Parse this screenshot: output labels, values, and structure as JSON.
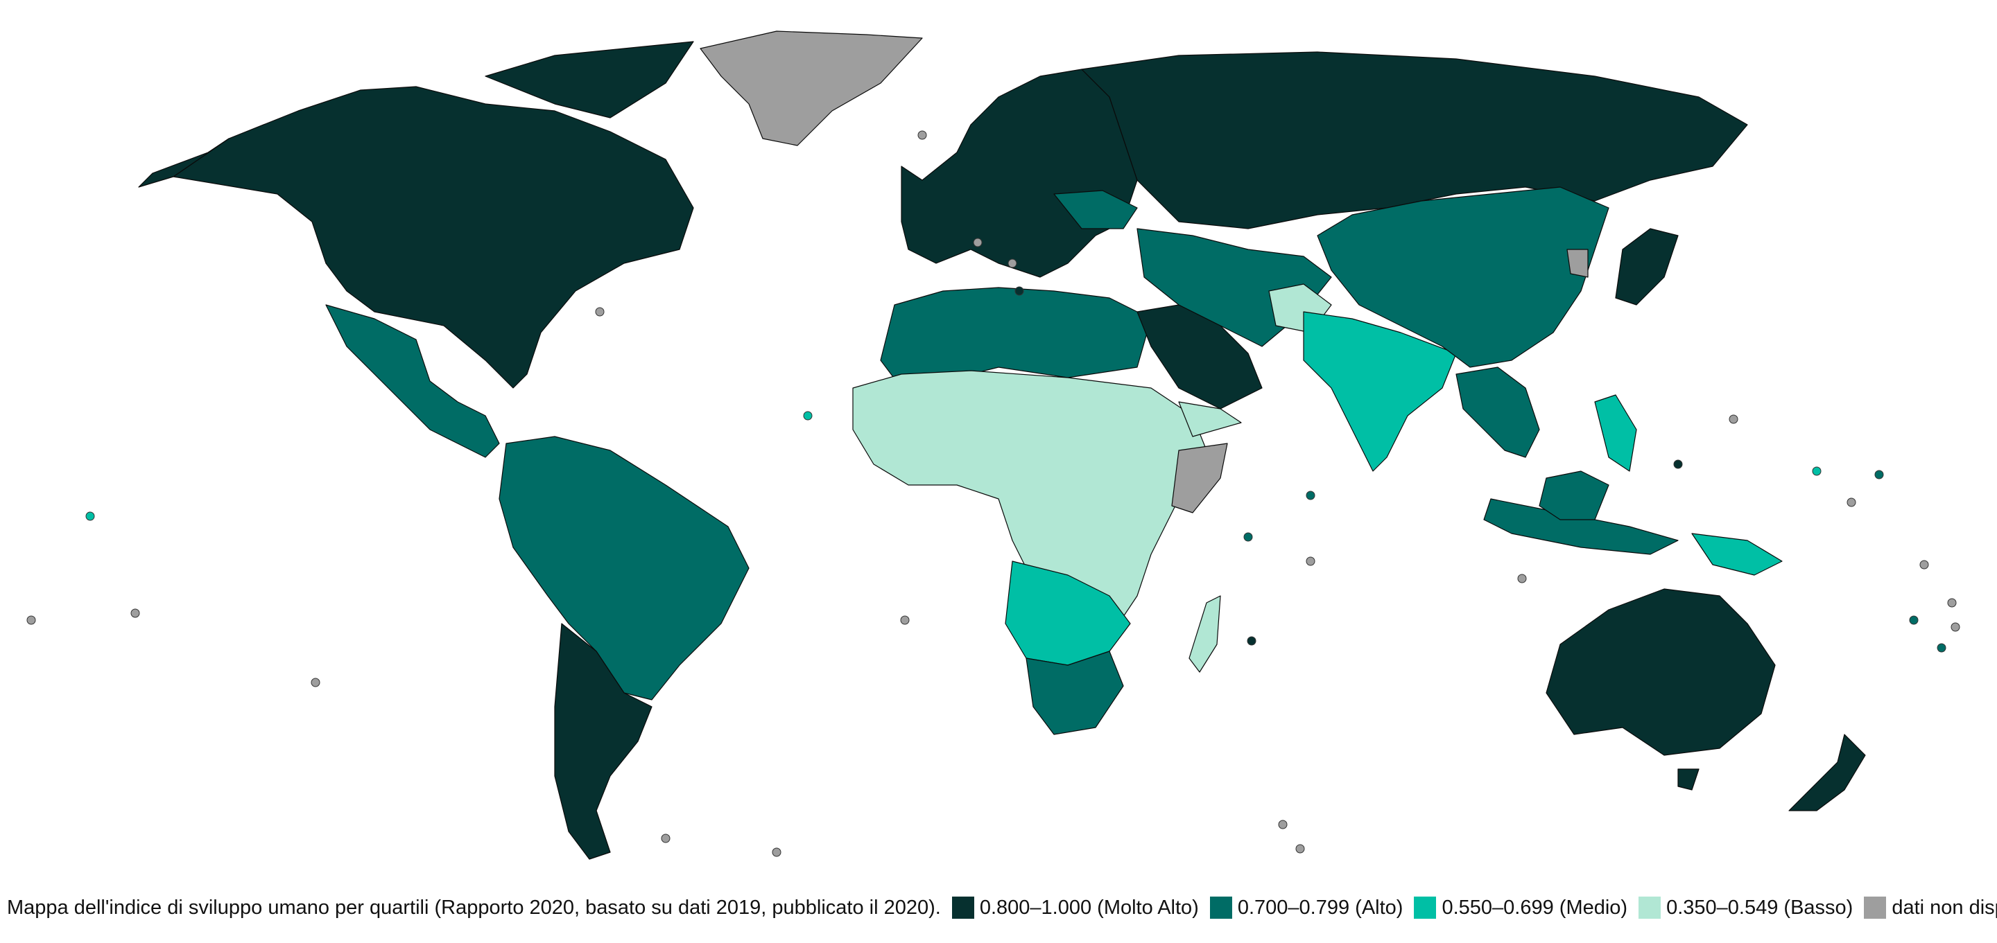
{
  "map": {
    "caption": "Mappa dell'indice di sviluppo umano per quartili (Rapporto 2020, basato su dati 2019, pubblicato il 2020).",
    "legend": [
      {
        "id": "very-high",
        "label": "0.800–1.000 (Molto Alto)",
        "color": "#06302f"
      },
      {
        "id": "high",
        "label": "0.700–0.799 (Alto)",
        "color": "#006c65"
      },
      {
        "id": "medium",
        "label": "0.550–0.699 (Medio)",
        "color": "#00bfa5"
      },
      {
        "id": "low",
        "label": "0.350–0.549 (Basso)",
        "color": "#b1e7d4"
      },
      {
        "id": "na",
        "label": "dati non disponibili",
        "color": "#9e9e9e"
      }
    ],
    "regions": [
      {
        "name": "north-america",
        "category": "very-high"
      },
      {
        "name": "greenland",
        "category": "na"
      },
      {
        "name": "mexico-central-america",
        "category": "high"
      },
      {
        "name": "south-america-north",
        "category": "high"
      },
      {
        "name": "south-america-south",
        "category": "very-high"
      },
      {
        "name": "europe",
        "category": "very-high"
      },
      {
        "name": "russia",
        "category": "very-high"
      },
      {
        "name": "north-africa",
        "category": "high"
      },
      {
        "name": "sub-saharan-africa",
        "category": "low"
      },
      {
        "name": "southern-africa",
        "category": "medium"
      },
      {
        "name": "south-africa",
        "category": "high"
      },
      {
        "name": "arabia",
        "category": "very-high"
      },
      {
        "name": "middle-east",
        "category": "high"
      },
      {
        "name": "india-south-asia",
        "category": "medium"
      },
      {
        "name": "china-mongolia",
        "category": "high"
      },
      {
        "name": "japan",
        "category": "very-high"
      },
      {
        "name": "southeast-asia",
        "category": "high"
      },
      {
        "name": "australia",
        "category": "very-high"
      },
      {
        "name": "new-zealand",
        "category": "very-high"
      }
    ]
  }
}
